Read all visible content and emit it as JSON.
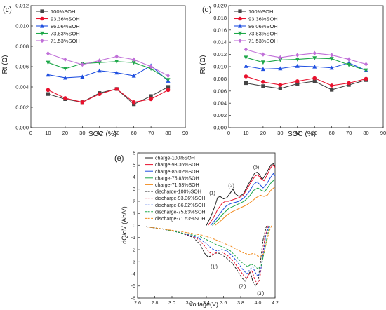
{
  "chart_data": [
    {
      "panel": "(c)",
      "type": "line",
      "ylabel": "Rt (Ω)",
      "xlabel": "SOC (%)",
      "xlim": [
        0,
        90
      ],
      "ylim": [
        0.0,
        0.012
      ],
      "xticks": [
        0,
        10,
        20,
        30,
        40,
        50,
        60,
        70,
        80,
        90
      ],
      "yticks": [
        "0.000",
        "0.002",
        "0.004",
        "0.006",
        "0.008",
        "0.010",
        "0.012"
      ],
      "grid": false,
      "legend_position": "top-left",
      "x": [
        10,
        20,
        30,
        40,
        50,
        60,
        70,
        80
      ],
      "series": [
        {
          "name": "100%SOH",
          "color": "#444444",
          "marker": "square",
          "values": [
            0.0033,
            0.0028,
            0.0025,
            0.0034,
            0.0038,
            0.0023,
            0.0031,
            0.004
          ]
        },
        {
          "name": "93.36%SOH",
          "color": "#e8112d",
          "marker": "circle",
          "values": [
            0.0037,
            0.0029,
            0.0025,
            0.0033,
            0.0038,
            0.0025,
            0.0028,
            0.0037
          ]
        },
        {
          "name": "86.06%SOH",
          "color": "#1f4fe0",
          "marker": "triangle-up",
          "values": [
            0.0052,
            0.0049,
            0.005,
            0.0056,
            0.0054,
            0.0051,
            0.0061,
            0.0046
          ]
        },
        {
          "name": "73.83%SOH",
          "color": "#1fa84a",
          "marker": "triangle-down",
          "values": [
            0.0064,
            0.0058,
            0.0063,
            0.0064,
            0.0065,
            0.0064,
            0.0058,
            0.0047
          ]
        },
        {
          "name": "71.53%SOH",
          "color": "#c06fd8",
          "marker": "diamond",
          "values": [
            0.0073,
            0.0067,
            0.0062,
            0.0066,
            0.007,
            0.0067,
            0.006,
            0.0051
          ]
        }
      ]
    },
    {
      "panel": "(d)",
      "type": "line",
      "ylabel": "Rt (Ω)",
      "xlabel": "SOC (%)",
      "xlim": [
        0,
        90
      ],
      "ylim": [
        0.0,
        0.02
      ],
      "xticks": [
        0,
        10,
        20,
        30,
        40,
        50,
        60,
        70,
        80,
        90
      ],
      "yticks": [
        "0.000",
        "0.002",
        "0.004",
        "0.006",
        "0.008",
        "0.010",
        "0.012",
        "0.014",
        "0.016",
        "0.018",
        "0.020"
      ],
      "grid": false,
      "legend_position": "top-left",
      "x": [
        10,
        20,
        30,
        40,
        50,
        60,
        70,
        80
      ],
      "series": [
        {
          "name": "100%SOH",
          "color": "#444444",
          "marker": "square",
          "values": [
            0.0073,
            0.0068,
            0.0064,
            0.0072,
            0.0076,
            0.0062,
            0.007,
            0.0078
          ]
        },
        {
          "name": "93.36%SOH",
          "color": "#e8112d",
          "marker": "circle",
          "values": [
            0.0084,
            0.0075,
            0.007,
            0.0076,
            0.0081,
            0.0069,
            0.0073,
            0.008
          ]
        },
        {
          "name": "86.06%SOH",
          "color": "#1f4fe0",
          "marker": "triangle-up",
          "values": [
            0.0101,
            0.0096,
            0.0097,
            0.0101,
            0.01,
            0.0098,
            0.0106,
            0.0094
          ]
        },
        {
          "name": "73.83%SOH",
          "color": "#1fa84a",
          "marker": "triangle-down",
          "values": [
            0.0115,
            0.0107,
            0.0111,
            0.0112,
            0.0114,
            0.0113,
            0.0103,
            0.0094
          ]
        },
        {
          "name": "71.53%SOH",
          "color": "#c06fd8",
          "marker": "diamond",
          "values": [
            0.0128,
            0.012,
            0.0115,
            0.0119,
            0.0122,
            0.0119,
            0.0112,
            0.0104
          ]
        }
      ]
    },
    {
      "panel": "(e)",
      "type": "line",
      "ylabel": "dQ/dV (Ah/V)",
      "xlabel": "Voltage(V)",
      "xlim": [
        2.6,
        4.2
      ],
      "ylim": [
        -6,
        6
      ],
      "xticks": [
        "2.6",
        "2.8",
        "3.0",
        "3.2",
        "3.4",
        "3.6",
        "3.8",
        "4.0",
        "4.2"
      ],
      "yticks": [
        -6,
        -5,
        -4,
        -3,
        -2,
        -1,
        0,
        1,
        2,
        3,
        4,
        5,
        6
      ],
      "grid": false,
      "legend_position": "top-left",
      "annotations": [
        {
          "text": "(1)",
          "x": 3.47,
          "y": 2.55
        },
        {
          "text": "(2)",
          "x": 3.69,
          "y": 3.15
        },
        {
          "text": "(3)",
          "x": 3.98,
          "y": 4.7
        },
        {
          "text": "(1')",
          "x": 3.49,
          "y": -3.55
        },
        {
          "text": "(2')",
          "x": 3.82,
          "y": -5.15
        },
        {
          "text": "(3')",
          "x": 4.03,
          "y": -5.75
        }
      ],
      "series": [
        {
          "name": "charge-100%SOH",
          "color": "#222222",
          "dash": "solid",
          "x": [
            3.4,
            3.45,
            3.5,
            3.53,
            3.56,
            3.6,
            3.64,
            3.68,
            3.71,
            3.74,
            3.78,
            3.83,
            3.88,
            3.93,
            3.96,
            3.99,
            4.02,
            4.05,
            4.08,
            4.12,
            4.15,
            4.18,
            4.2
          ],
          "y": [
            0,
            0.7,
            1.6,
            2.3,
            2.4,
            2.2,
            2.3,
            2.7,
            3.0,
            2.6,
            2.4,
            2.6,
            3.3,
            3.9,
            4.3,
            4.4,
            4.2,
            3.8,
            4.1,
            4.6,
            5.0,
            5.1,
            4.9
          ]
        },
        {
          "name": "charge-93.36%SOH",
          "color": "#e8112d",
          "dash": "solid",
          "x": [
            3.42,
            3.48,
            3.53,
            3.58,
            3.62,
            3.66,
            3.7,
            3.74,
            3.78,
            3.83,
            3.88,
            3.93,
            3.97,
            4.0,
            4.03,
            4.07,
            4.11,
            4.15,
            4.18,
            4.2
          ],
          "y": [
            0,
            0.6,
            1.3,
            1.8,
            2.0,
            2.0,
            2.1,
            2.2,
            2.3,
            2.5,
            3.1,
            3.7,
            4.1,
            4.2,
            3.9,
            3.7,
            4.2,
            4.8,
            5.0,
            4.8
          ]
        },
        {
          "name": "charge-86.02%SOH",
          "color": "#1f4fe0",
          "dash": "solid",
          "x": [
            3.45,
            3.52,
            3.58,
            3.63,
            3.68,
            3.73,
            3.78,
            3.84,
            3.9,
            3.95,
            3.99,
            4.02,
            4.06,
            4.1,
            4.14,
            4.18,
            4.2
          ],
          "y": [
            0,
            0.6,
            1.2,
            1.6,
            1.8,
            1.9,
            2.0,
            2.3,
            2.8,
            3.4,
            3.6,
            3.4,
            3.1,
            3.4,
            3.9,
            4.3,
            4.1
          ]
        },
        {
          "name": "charge-75.83%SOH",
          "color": "#1fa84a",
          "dash": "solid",
          "x": [
            3.47,
            3.54,
            3.6,
            3.66,
            3.72,
            3.78,
            3.84,
            3.9,
            3.95,
            4.0,
            4.04,
            4.08,
            4.12,
            4.16,
            4.2
          ],
          "y": [
            0,
            0.5,
            1.0,
            1.4,
            1.6,
            1.8,
            2.0,
            2.4,
            2.9,
            3.1,
            2.9,
            2.8,
            3.2,
            3.6,
            3.8
          ]
        },
        {
          "name": "charge-71.53%SOH",
          "color": "#f28a1c",
          "dash": "solid",
          "x": [
            3.5,
            3.57,
            3.63,
            3.69,
            3.75,
            3.81,
            3.87,
            3.93,
            3.98,
            4.03,
            4.07,
            4.11,
            4.15,
            4.2
          ],
          "y": [
            0,
            0.4,
            0.8,
            1.1,
            1.3,
            1.5,
            1.7,
            2.0,
            2.3,
            2.5,
            2.4,
            2.5,
            2.9,
            3.2
          ]
        },
        {
          "name": "discharge-100%SOH",
          "color": "#222222",
          "dash": "dashed",
          "x": [
            2.7,
            2.9,
            3.1,
            3.25,
            3.33,
            3.38,
            3.42,
            3.46,
            3.5,
            3.55,
            3.62,
            3.7,
            3.76,
            3.81,
            3.85,
            3.88,
            3.91,
            3.94,
            3.97,
            4.0,
            4.03,
            4.06,
            4.1
          ],
          "y": [
            -0.1,
            -0.3,
            -0.6,
            -1.0,
            -1.6,
            -2.3,
            -2.6,
            -2.5,
            -2.3,
            -2.3,
            -2.6,
            -3.1,
            -3.7,
            -4.3,
            -4.6,
            -4.2,
            -3.8,
            -4.6,
            -5.0,
            -4.7,
            -3.0,
            -1.2,
            0
          ]
        },
        {
          "name": "discharge-93.36%SOH",
          "color": "#e8112d",
          "dash": "dashed",
          "x": [
            2.7,
            2.9,
            3.1,
            3.28,
            3.37,
            3.43,
            3.48,
            3.53,
            3.58,
            3.65,
            3.72,
            3.78,
            3.83,
            3.87,
            3.9,
            3.93,
            3.96,
            3.99,
            4.02,
            4.05,
            4.08,
            4.12
          ],
          "y": [
            -0.1,
            -0.3,
            -0.6,
            -1.0,
            -1.6,
            -2.2,
            -2.4,
            -2.2,
            -2.2,
            -2.5,
            -3.0,
            -3.6,
            -4.1,
            -4.4,
            -4.0,
            -3.7,
            -4.4,
            -4.8,
            -4.5,
            -2.8,
            -1.0,
            0
          ]
        },
        {
          "name": "discharge-86.02%SOH",
          "color": "#1f4fe0",
          "dash": "dashed",
          "x": [
            2.7,
            2.9,
            3.1,
            3.3,
            3.4,
            3.46,
            3.52,
            3.58,
            3.64,
            3.7,
            3.76,
            3.82,
            3.87,
            3.91,
            3.94,
            3.97,
            4.0,
            4.03,
            4.06,
            4.09,
            4.13
          ],
          "y": [
            -0.1,
            -0.3,
            -0.6,
            -1.0,
            -1.5,
            -1.9,
            -2.1,
            -2.0,
            -2.1,
            -2.5,
            -3.0,
            -3.6,
            -4.0,
            -3.6,
            -3.4,
            -3.9,
            -4.2,
            -3.8,
            -2.4,
            -0.9,
            0
          ]
        },
        {
          "name": "discharge-75.83%SOH",
          "color": "#1fa84a",
          "dash": "dashed",
          "x": [
            2.7,
            2.9,
            3.1,
            3.32,
            3.44,
            3.52,
            3.6,
            3.68,
            3.75,
            3.82,
            3.88,
            3.92,
            3.96,
            4.0,
            4.04,
            4.08,
            4.11,
            4.14
          ],
          "y": [
            -0.1,
            -0.3,
            -0.6,
            -0.9,
            -1.3,
            -1.6,
            -1.8,
            -2.1,
            -2.6,
            -3.1,
            -3.4,
            -3.2,
            -3.3,
            -3.6,
            -3.3,
            -2.0,
            -0.8,
            0
          ]
        },
        {
          "name": "discharge-71.53%SOH",
          "color": "#f28a1c",
          "dash": "dashed",
          "x": [
            2.7,
            2.9,
            3.1,
            3.35,
            3.48,
            3.58,
            3.68,
            3.76,
            3.84,
            3.9,
            3.95,
            3.99,
            4.03,
            4.07,
            4.1,
            4.13,
            4.16
          ],
          "y": [
            -0.1,
            -0.3,
            -0.5,
            -0.8,
            -1.1,
            -1.4,
            -1.7,
            -2.0,
            -2.3,
            -2.4,
            -2.3,
            -2.5,
            -2.6,
            -2.3,
            -1.4,
            -0.5,
            0
          ]
        }
      ]
    }
  ]
}
